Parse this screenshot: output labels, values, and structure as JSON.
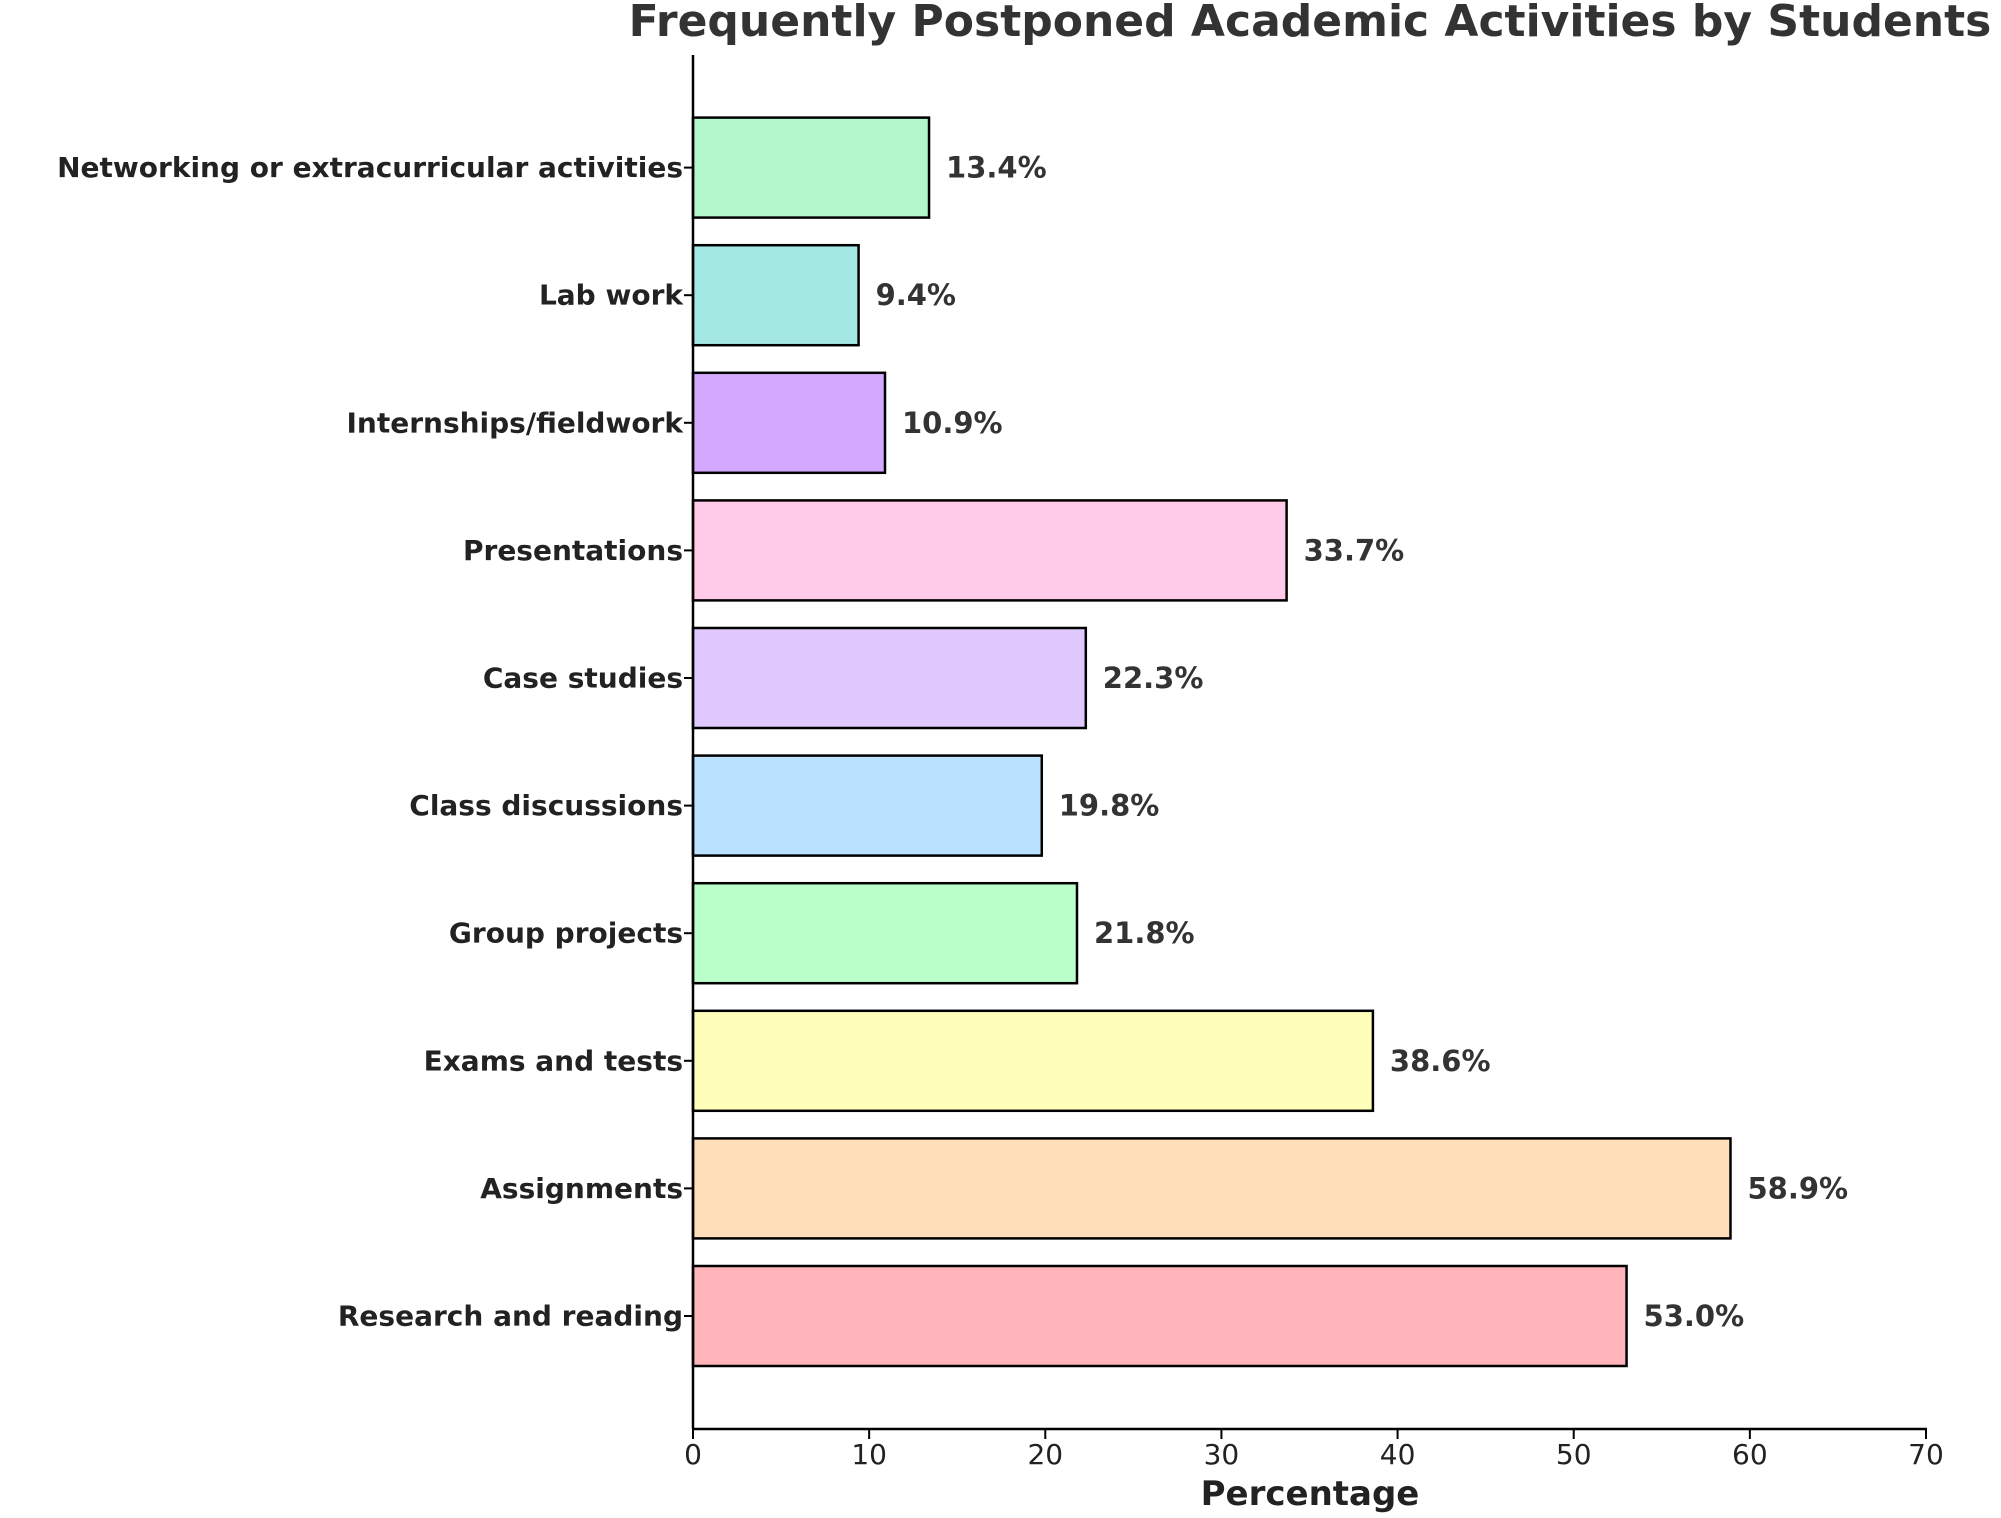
{
  "chart_data": {
    "type": "bar",
    "orientation": "horizontal",
    "title": "Frequently Postponed Academic Activities by Students",
    "xlabel": "Percentage",
    "ylabel": "",
    "xlim": [
      0,
      70
    ],
    "xticks": [
      0,
      10,
      20,
      30,
      40,
      50,
      60,
      70
    ],
    "grid": false,
    "legend": "none",
    "categories": [
      "Research and reading",
      "Assignments",
      "Exams and tests",
      "Group projects",
      "Class discussions",
      "Case studies",
      "Presentations",
      "Internships/fieldwork",
      "Lab work",
      "Networking or extracurricular activities"
    ],
    "values": [
      53.0,
      58.9,
      38.6,
      21.8,
      19.8,
      22.3,
      33.7,
      10.9,
      9.4,
      13.4
    ],
    "data_labels": [
      "53.0%",
      "58.9%",
      "38.6%",
      "21.8%",
      "19.8%",
      "22.3%",
      "33.7%",
      "10.9%",
      "9.4%",
      "13.4%"
    ],
    "colors": [
      "#ffb3ba",
      "#ffdfba",
      "#ffffba",
      "#baffc9",
      "#bae1ff",
      "#e0c9ff",
      "#ffc9e8",
      "#d4a8ff",
      "#a3e8e3",
      "#b3f6c9"
    ]
  }
}
